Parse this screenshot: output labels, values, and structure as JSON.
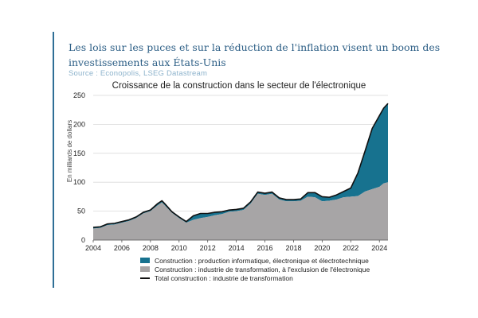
{
  "header": {
    "headline": "Les lois sur les puces et sur la réduction de l'inflation visent un boom des investissements aux États-Unis",
    "source": "Source : Econopolis, LSEG Datastream"
  },
  "colors": {
    "accent": "#2f6f96",
    "electronics": "#17728f",
    "manufacturing_ex": "#a7a5a6",
    "total": "#111111"
  },
  "chart_data": {
    "type": "area",
    "title": "Croissance de la construction dans le secteur de l'électronique",
    "ylabel": "En milliards de dollars",
    "xlabel": "",
    "xlim": [
      2004,
      2024.6
    ],
    "ylim": [
      0,
      250
    ],
    "yticks": [
      0,
      50,
      100,
      150,
      200,
      250
    ],
    "xticks": [
      2004,
      2006,
      2008,
      2010,
      2012,
      2014,
      2016,
      2018,
      2020,
      2022,
      2024
    ],
    "stacked": true,
    "x": [
      2004.0,
      2004.5,
      2005.0,
      2005.5,
      2006.0,
      2006.5,
      2007.0,
      2007.5,
      2008.0,
      2008.5,
      2008.8,
      2009.0,
      2009.5,
      2010.0,
      2010.5,
      2011.0,
      2011.5,
      2012.0,
      2012.5,
      2013.0,
      2013.5,
      2014.0,
      2014.5,
      2015.0,
      2015.5,
      2016.0,
      2016.5,
      2017.0,
      2017.5,
      2018.0,
      2018.5,
      2019.0,
      2019.5,
      2020.0,
      2020.5,
      2021.0,
      2021.5,
      2022.0,
      2022.5,
      2023.0,
      2023.5,
      2024.0,
      2024.3,
      2024.6
    ],
    "series": [
      {
        "name": "Construction : industrie de transformation, à l'exclusion de l'électronique",
        "values": [
          20,
          21,
          26,
          27,
          30,
          33,
          38,
          46,
          50,
          60,
          65,
          60,
          47,
          38,
          30,
          35,
          38,
          40,
          43,
          45,
          49,
          50,
          52,
          63,
          80,
          78,
          80,
          70,
          67,
          67,
          68,
          75,
          74,
          67,
          68,
          70,
          74,
          75,
          76,
          84,
          88,
          92,
          98,
          100
        ]
      },
      {
        "name": "Construction : production informatique, électronique et électrotechnique",
        "values": [
          2,
          2,
          2,
          2,
          2,
          2,
          2,
          2,
          2,
          3,
          3,
          3,
          2,
          2,
          2,
          7,
          8,
          6,
          5,
          4,
          3,
          3,
          3,
          3,
          3,
          3,
          3,
          3,
          3,
          3,
          3,
          7,
          8,
          8,
          6,
          8,
          10,
          15,
          40,
          70,
          105,
          123,
          130,
          136
        ]
      }
    ],
    "total_series": {
      "name": "Total construction : industrie de transformation",
      "values": [
        22,
        23,
        28,
        29,
        32,
        35,
        40,
        48,
        52,
        63,
        68,
        63,
        49,
        40,
        32,
        42,
        46,
        46,
        48,
        49,
        52,
        53,
        55,
        66,
        83,
        81,
        83,
        73,
        70,
        70,
        71,
        82,
        82,
        75,
        74,
        78,
        84,
        90,
        116,
        154,
        193,
        215,
        228,
        236
      ]
    }
  }
}
